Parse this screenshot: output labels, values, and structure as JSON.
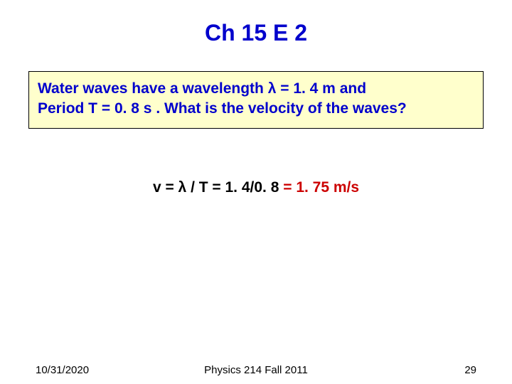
{
  "colors": {
    "title": "#0000cc",
    "question_text": "#0000cc",
    "question_bg": "#ffffcc",
    "question_border": "#000000",
    "answer_dark": "#000000",
    "answer_highlight": "#cc0000",
    "footer": "#000000"
  },
  "title": "Ch 15 E 2",
  "question": {
    "line1_a": "Water waves have a wavelength ",
    "line1_lambda": "λ",
    "line1_b": " = 1. 4 m and",
    "line2": "Period T = 0. 8 s .  What is the velocity of the waves?"
  },
  "answer": {
    "lhs": "v = λ / T = 1. 4/0. 8 ",
    "rhs": "= 1. 75 m/s"
  },
  "footer": {
    "date": "10/31/2020",
    "course": "Physics 214 Fall 2011",
    "page": "29"
  },
  "fontsizes": {
    "title": 32,
    "body": 21,
    "footer": 15
  }
}
